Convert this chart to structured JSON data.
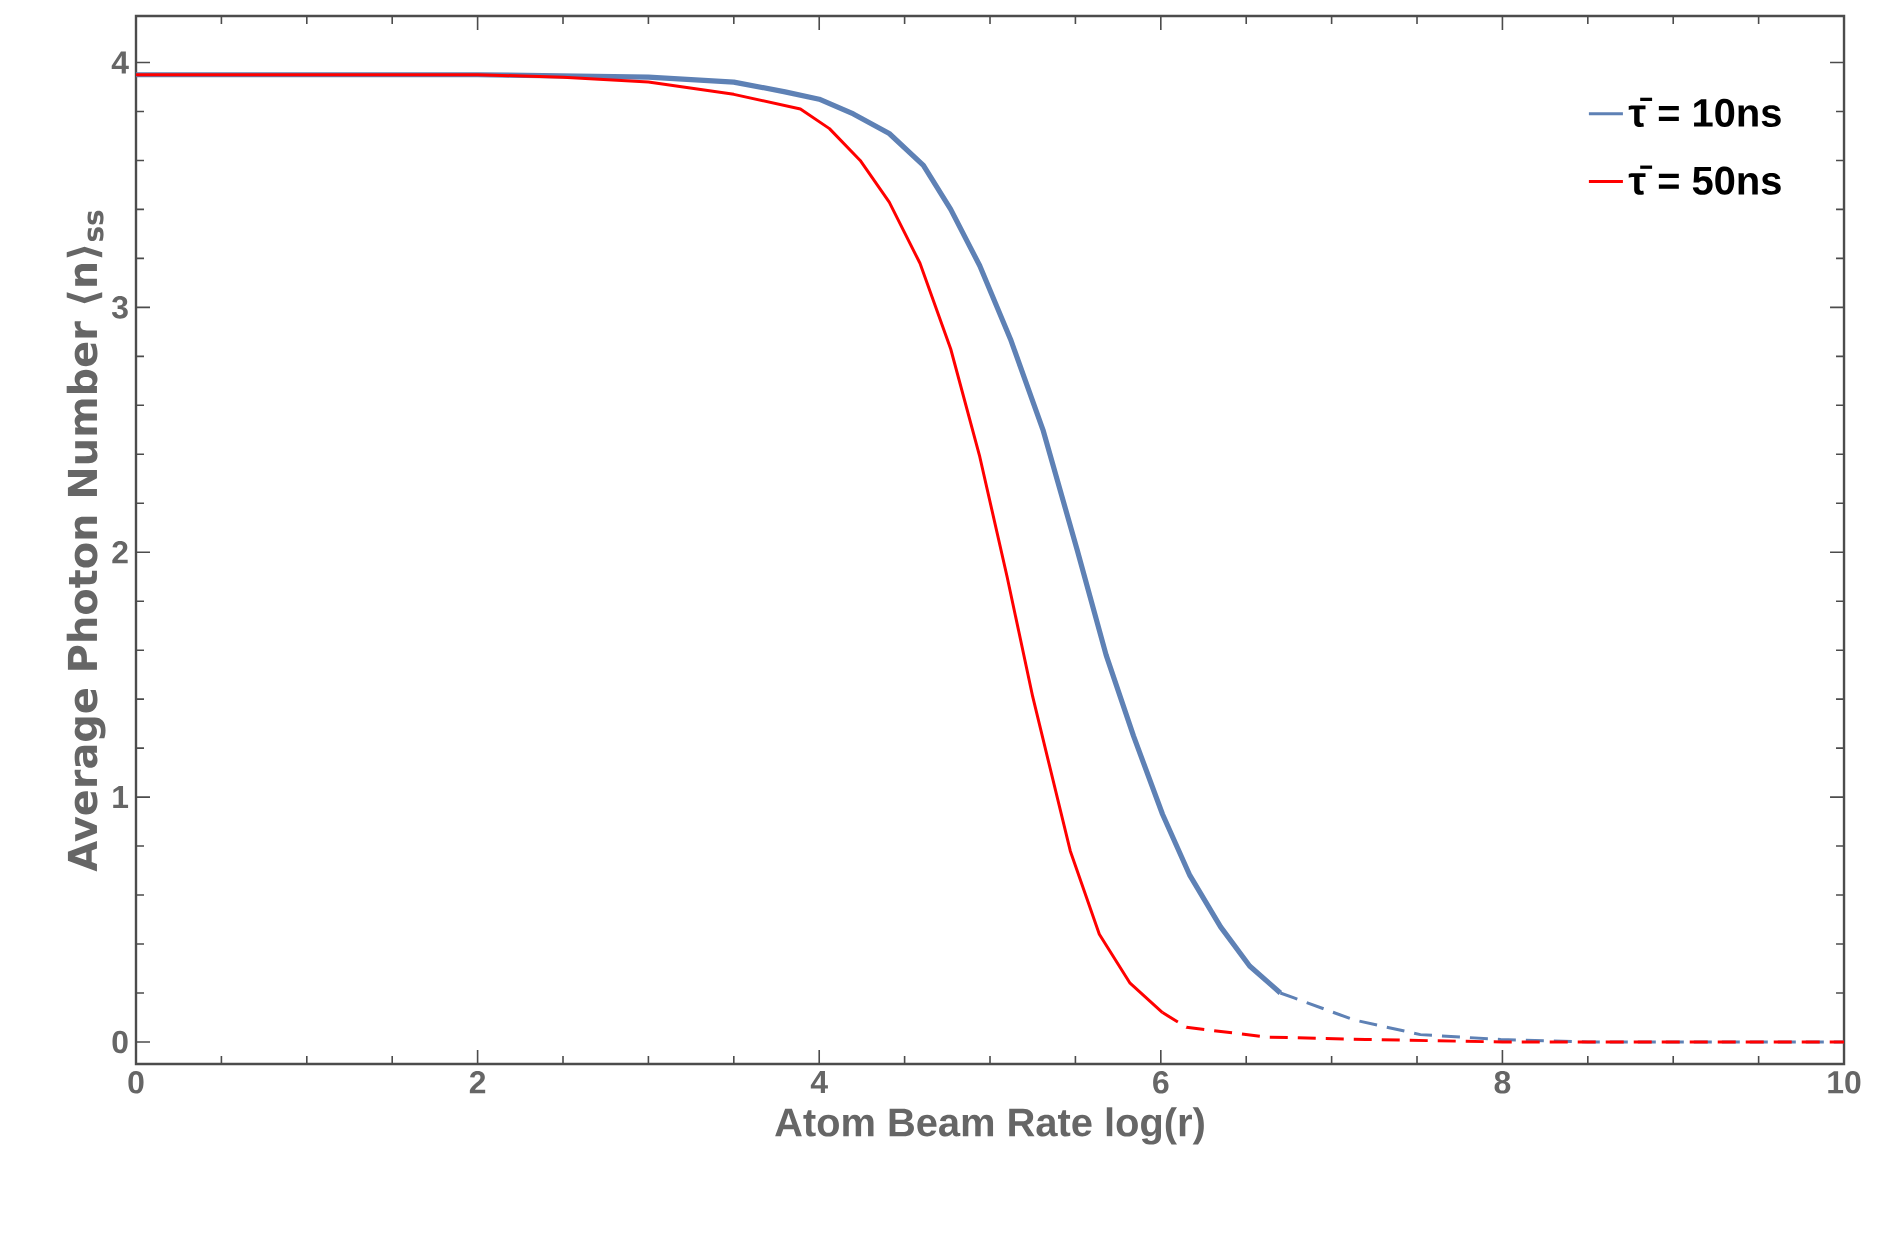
{
  "chart_data": {
    "type": "line",
    "xlabel": "Atom Beam Rate log(r)",
    "ylabel": "Average Photon Number ⟨n⟩$_{ss}$",
    "xlim": [
      0,
      10
    ],
    "ylim": [
      -0.09,
      4.19
    ],
    "xticks": [
      0,
      2,
      4,
      6,
      8,
      10
    ],
    "yticks": [
      0,
      1,
      2,
      3,
      4
    ],
    "legend": "top right",
    "series": [
      {
        "name": "τ̄ = 10ns",
        "color": "#5e81b5",
        "line_style": "solid",
        "x": [
          0,
          1,
          2,
          3,
          3.5,
          3.8,
          4.0,
          4.2,
          4.41,
          4.61,
          4.77,
          4.94,
          5.12,
          5.31,
          5.51,
          5.68,
          5.84,
          6.01,
          6.17,
          6.35,
          6.52,
          6.7
        ],
        "values": [
          3.95,
          3.95,
          3.95,
          3.94,
          3.92,
          3.88,
          3.85,
          3.79,
          3.71,
          3.58,
          3.4,
          3.17,
          2.87,
          2.5,
          2.01,
          1.58,
          1.25,
          0.93,
          0.68,
          0.47,
          0.31,
          0.2
        ]
      },
      {
        "color": "#5e81b5",
        "line_style": "dashed",
        "x": [
          6.7,
          6.78,
          7.13,
          7.52,
          7.99,
          8.5,
          9,
          10
        ],
        "values": [
          0.2,
          0.18,
          0.09,
          0.03,
          0.01,
          0.0,
          0.0,
          0.0
        ]
      },
      {
        "name": "τ̄ = 50ns",
        "color": "#ff0000",
        "line_style": "solid",
        "x": [
          0,
          1,
          2,
          2.5,
          3.0,
          3.5,
          3.89,
          4.06,
          4.24,
          4.41,
          4.59,
          4.77,
          4.94,
          5.1,
          5.25,
          5.47,
          5.64,
          5.82,
          6.01
        ],
        "values": [
          3.95,
          3.95,
          3.95,
          3.94,
          3.92,
          3.87,
          3.81,
          3.73,
          3.6,
          3.43,
          3.18,
          2.83,
          2.39,
          1.9,
          1.41,
          0.78,
          0.44,
          0.24,
          0.12
        ]
      },
      {
        "color": "#ff0000",
        "line_style": "dashed",
        "x": [
          6.01,
          6.15,
          6.62,
          7.2,
          8,
          9,
          10
        ],
        "values": [
          0.12,
          0.06,
          0.02,
          0.01,
          0.0,
          0.0,
          0.0
        ]
      }
    ]
  }
}
